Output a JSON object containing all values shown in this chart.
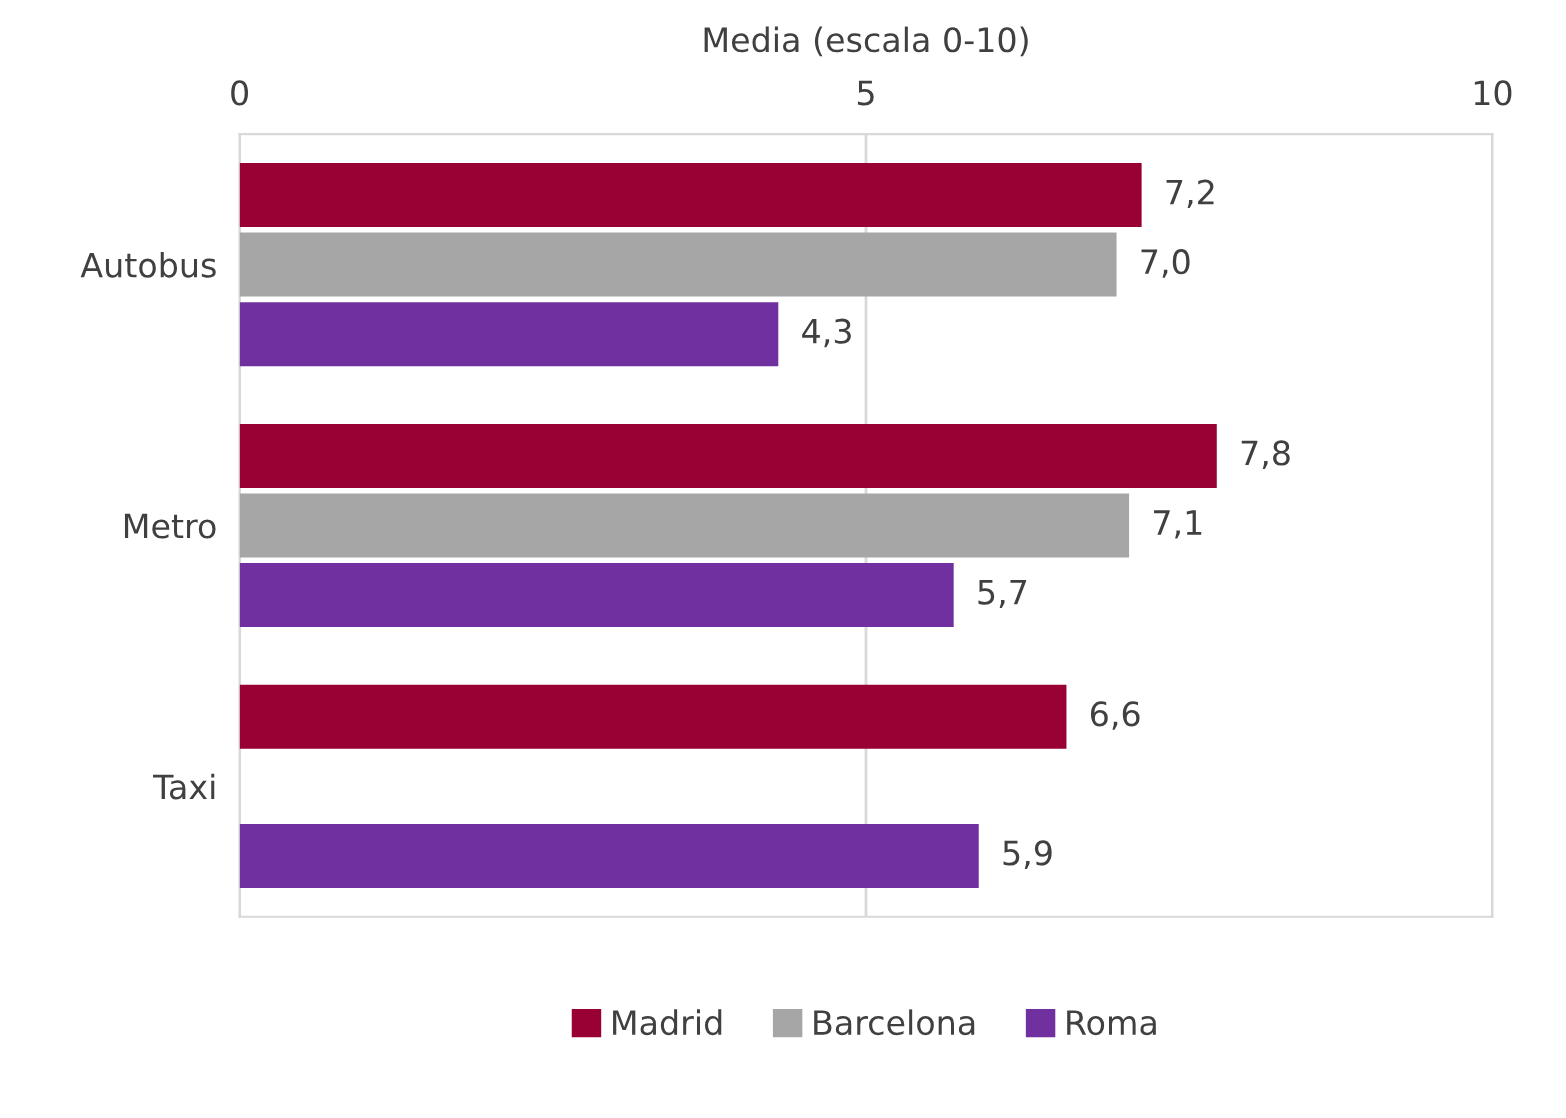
{
  "chart_data": {
    "type": "bar",
    "orientation": "horizontal",
    "xlabel": "Media (escala 0-10)",
    "categories": [
      "Autobus",
      "Metro",
      "Taxi"
    ],
    "series": [
      {
        "name": "Madrid",
        "color": "#990033",
        "values": [
          7.2,
          7.8,
          6.6
        ],
        "value_labels": [
          "7,2",
          "7,8",
          "6,6"
        ]
      },
      {
        "name": "Barcelona",
        "color": "#a6a6a6",
        "values": [
          7.0,
          7.1,
          null
        ],
        "value_labels": [
          "7,0",
          "7,1",
          null
        ]
      },
      {
        "name": "Roma",
        "color": "#7030a0",
        "values": [
          4.3,
          5.7,
          5.9
        ],
        "value_labels": [
          "4,3",
          "5,7",
          "5,9"
        ]
      }
    ],
    "xlim": [
      0,
      10
    ],
    "xticks": [
      0,
      5,
      10
    ],
    "grid": "x",
    "legend": "bottom"
  }
}
